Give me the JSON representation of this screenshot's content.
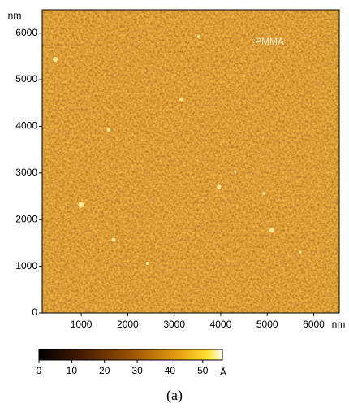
{
  "chart_data": {
    "type": "image",
    "annotation": "PMMA",
    "x_unit": "nm",
    "y_unit": "nm",
    "xlim": [
      160,
      6550
    ],
    "xticks": [
      1000,
      2000,
      3000,
      4000,
      5000,
      6000
    ],
    "ylim": [
      0,
      6500
    ],
    "yticks": [
      0,
      1000,
      2000,
      3000,
      4000,
      5000,
      6000
    ],
    "colorbar": {
      "lim": [
        0,
        56
      ],
      "ticks": [
        0,
        10,
        20,
        30,
        40,
        50
      ],
      "unit": "Å"
    }
  },
  "caption": "(a)"
}
